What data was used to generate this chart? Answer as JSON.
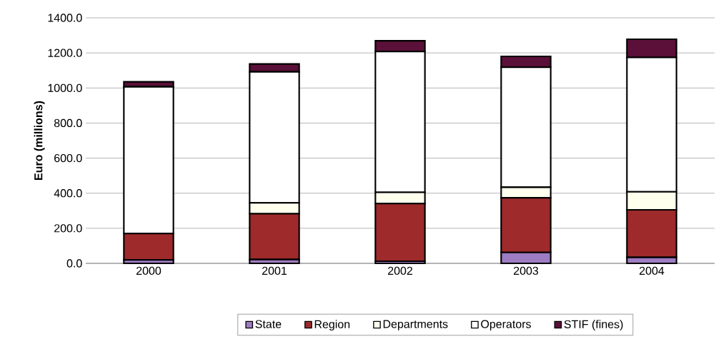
{
  "chart_data": {
    "type": "bar",
    "stacked": true,
    "ylabel": "Euro (millions)",
    "categories": [
      "2000",
      "2001",
      "2002",
      "2003",
      "2004"
    ],
    "series": [
      {
        "name": "State",
        "color": "#9e7cc1",
        "values": [
          20,
          22,
          12,
          62,
          34
        ]
      },
      {
        "name": "Region",
        "color": "#9e2a2b",
        "values": [
          150,
          261,
          329,
          312,
          271
        ]
      },
      {
        "name": "Departments",
        "color": "#ffffee",
        "values": [
          null,
          62,
          64,
          60,
          103
        ]
      },
      {
        "name": "Operators",
        "color": "#ffffff",
        "values": [
          837,
          747,
          803,
          684,
          766
        ]
      },
      {
        "name": "STIF (fines)",
        "color": "#5a1038",
        "values": [
          28,
          45,
          61,
          62,
          104
        ]
      }
    ],
    "ylim": [
      0,
      1400
    ],
    "yticks": [
      {
        "value": 0,
        "label": "0.0"
      },
      {
        "value": 200,
        "label": "200.0"
      },
      {
        "value": 400,
        "label": "400.0"
      },
      {
        "value": 600,
        "label": "600.0"
      },
      {
        "value": 800,
        "label": "800.0"
      },
      {
        "value": 1000,
        "label": "1000.0"
      },
      {
        "value": 1200,
        "label": "1200.0"
      },
      {
        "value": 1400,
        "label": "1400.0"
      }
    ],
    "grid": "y",
    "legend": "bottom"
  }
}
